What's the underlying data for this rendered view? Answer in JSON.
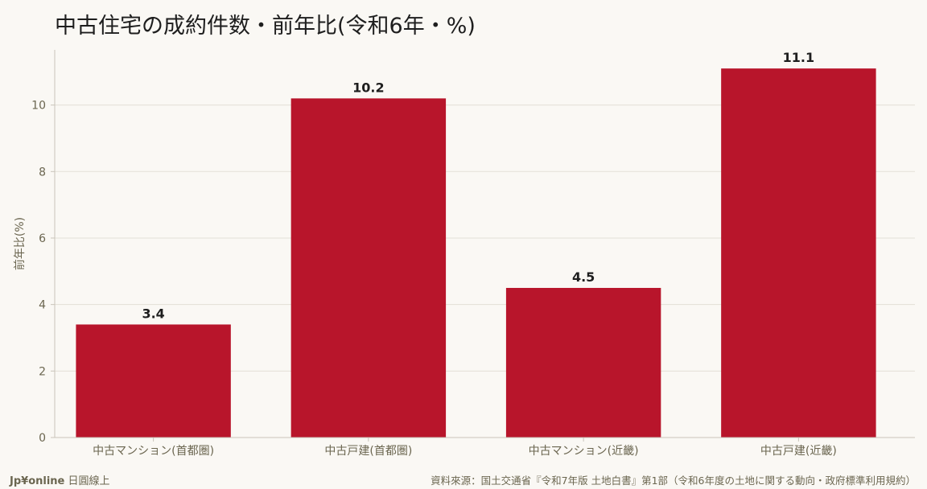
{
  "title": "中古住宅の成約件数・前年比(令和6年・%)",
  "footer": {
    "brand": "Jp¥online",
    "brand_sub": "日圓線上",
    "source": "資料來源：国土交通省『令和7年版 土地白書』第1部（令和6年度の土地に関する動向・政府標準利用規約）"
  },
  "colors": {
    "bar": "#b8152b",
    "grid": "#e3dfd7",
    "axis": "#c9c4ba",
    "tick_text": "#6b6650",
    "label_text": "#1e1e1e"
  },
  "chart_data": {
    "type": "bar",
    "title": "中古住宅の成約件数・前年比(令和6年・%)",
    "xlabel": "",
    "ylabel": "前年比(%)",
    "categories": [
      "中古マンション(首都圏)",
      "中古戸建(首都圏)",
      "中古マンション(近畿)",
      "中古戸建(近畿)"
    ],
    "values": [
      3.4,
      10.2,
      4.5,
      11.1
    ],
    "value_labels": [
      "3.4",
      "10.2",
      "4.5",
      "11.1"
    ],
    "ylim": [
      0,
      11.66
    ],
    "yticks": [
      0,
      2,
      4,
      6,
      8,
      10
    ],
    "grid": true,
    "legend": "none"
  }
}
